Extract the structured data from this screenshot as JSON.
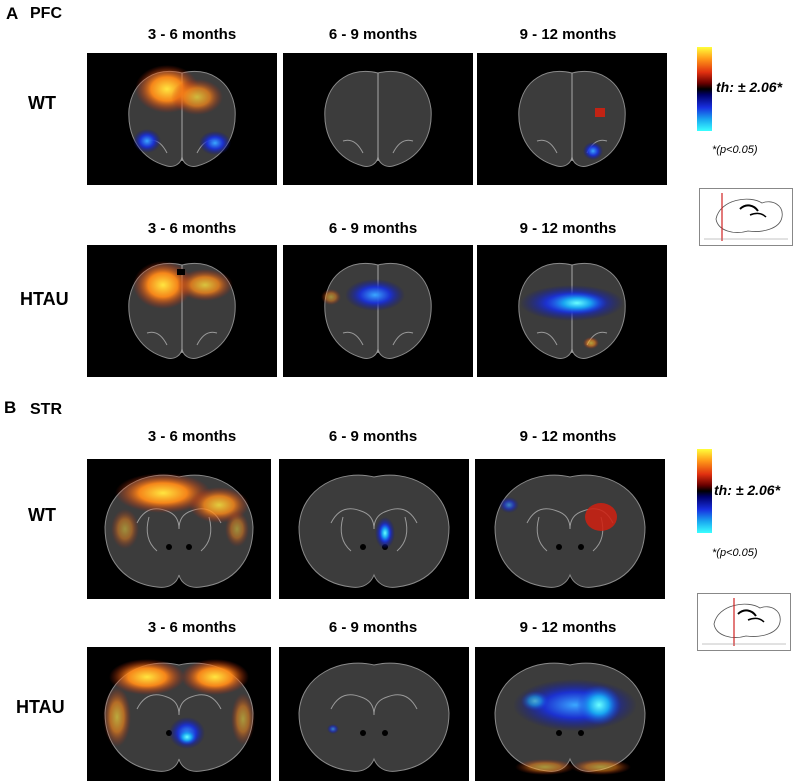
{
  "panels": [
    {
      "letter": "A",
      "region": "PFC",
      "rows": [
        {
          "label": "WT",
          "columns": [
            "3 - 6 months",
            "6 - 9 months",
            "9 - 12 months"
          ]
        },
        {
          "label": "HTAU",
          "columns": [
            "3 - 6 months",
            "6 - 9 months",
            "9 - 12 months"
          ]
        }
      ],
      "colorbar": {
        "threshold_label": "th: ± 2.06*",
        "p_label": "*(p<0.05)",
        "colors": [
          "#ffff3a",
          "#e03010",
          "#000000",
          "#1830e0",
          "#3affff"
        ]
      }
    },
    {
      "letter": "B",
      "region": "STR",
      "rows": [
        {
          "label": "WT",
          "columns": [
            "3 - 6 months",
            "6 - 9 months",
            "9 - 12 months"
          ]
        },
        {
          "label": "HTAU",
          "columns": [
            "3 - 6 months",
            "6 - 9 months",
            "9 - 12 months"
          ]
        }
      ],
      "colorbar": {
        "threshold_label": "th: ± 2.06*",
        "p_label": "*(p<0.05)",
        "colors": [
          "#ffff3a",
          "#e03010",
          "#000000",
          "#1830e0",
          "#3affff"
        ]
      }
    }
  ]
}
